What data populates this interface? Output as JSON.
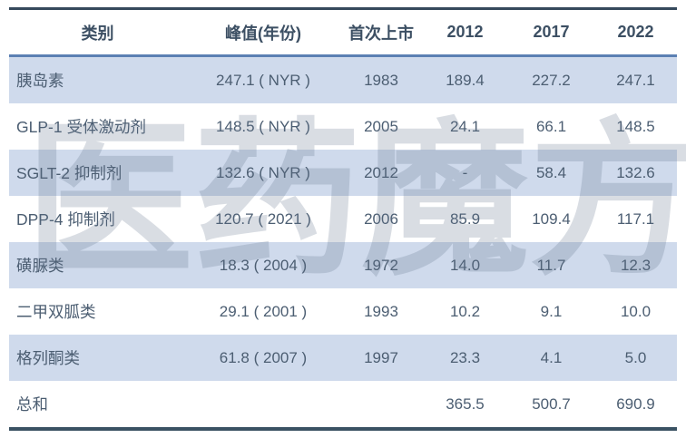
{
  "table": {
    "columns": {
      "category": "类别",
      "peak": "峰值(年份)",
      "first_launch": "首次上市",
      "y2012": "2012",
      "y2017": "2017",
      "y2022": "2022"
    },
    "rows": [
      {
        "category": "胰岛素",
        "peak": "247.1 ( NYR )",
        "first_launch": "1983",
        "y2012": "189.4",
        "y2017": "227.2",
        "y2022": "247.1"
      },
      {
        "category": "GLP-1 受体激动剂",
        "peak": "148.5 ( NYR )",
        "first_launch": "2005",
        "y2012": "24.1",
        "y2017": "66.1",
        "y2022": "148.5"
      },
      {
        "category": "SGLT-2 抑制剂",
        "peak": "132.6 ( NYR )",
        "first_launch": "2012",
        "y2012": "-",
        "y2017": "58.4",
        "y2022": "132.6"
      },
      {
        "category": "DPP-4 抑制剂",
        "peak": "120.7 ( 2021 )",
        "first_launch": "2006",
        "y2012": "85.9",
        "y2017": "109.4",
        "y2022": "117.1"
      },
      {
        "category": "磺脲类",
        "peak": "18.3 ( 2004 )",
        "first_launch": "1972",
        "y2012": "14.0",
        "y2017": "11.7",
        "y2022": "12.3"
      },
      {
        "category": "二甲双胍类",
        "peak": "29.1 ( 2001 )",
        "first_launch": "1993",
        "y2012": "10.2",
        "y2017": "9.1",
        "y2022": "10.0"
      },
      {
        "category": "格列酮类",
        "peak": "61.8 ( 2007 )",
        "first_launch": "1997",
        "y2012": "23.3",
        "y2017": "4.1",
        "y2022": "5.0"
      }
    ],
    "total": {
      "category": "总和",
      "peak": "",
      "first_launch": "",
      "y2012": "365.5",
      "y2017": "500.7",
      "y2022": "690.9"
    }
  },
  "watermark": {
    "char1": "医",
    "char2": "药",
    "char3": "魔",
    "char4": "方"
  },
  "colors": {
    "row_highlight": "#cfdaec",
    "header_divider": "#5b80b3",
    "frame_border": "#35495c",
    "text": "#4c5e72"
  }
}
